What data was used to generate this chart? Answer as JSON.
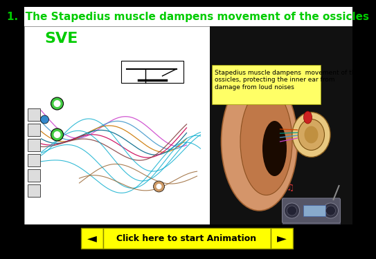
{
  "title": "1.  The Stapedius muscle dampens movement of the ossicles",
  "title_color": "#00cc00",
  "title_fontsize": 11,
  "title_bold": true,
  "background_color": "#000000",
  "sve_text": "SVE",
  "sve_color": "#00cc00",
  "sve_fontsize": 16,
  "annotation_box_bg": "#ffff66",
  "annotation_text": "Stapedius muscle dampens  movement of the\nossicles, protecting the inner ear from\ndamage from loud noises",
  "annotation_fontsize": 6.5,
  "button_bg": "#ffff00",
  "button_text": "Click here to start Animation",
  "button_fontsize": 9,
  "left_arrow": "◄",
  "right_arrow": "►"
}
